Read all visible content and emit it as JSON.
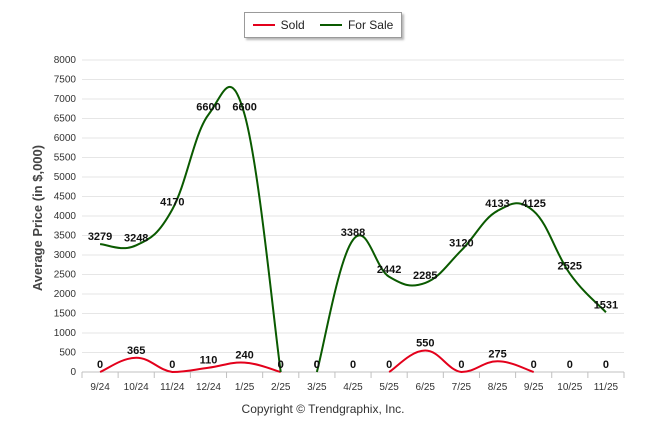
{
  "chart_data": {
    "type": "line",
    "ylabel": "Average Price (in $,000)",
    "ylim": [
      0,
      8000
    ],
    "yticks": [
      0,
      500,
      1000,
      1500,
      2000,
      2500,
      3000,
      3500,
      4000,
      4500,
      5000,
      5500,
      6000,
      6500,
      7000,
      7500,
      8000
    ],
    "categories": [
      "9/24",
      "10/24",
      "11/24",
      "12/24",
      "1/25",
      "2/25",
      "3/25",
      "4/25",
      "5/25",
      "6/25",
      "7/25",
      "8/25",
      "9/25",
      "10/25",
      "11/25"
    ],
    "grid": true,
    "legend_position": "top-center",
    "series": [
      {
        "name": "Sold",
        "color": "#e3001b",
        "values": [
          0,
          365,
          0,
          110,
          240,
          0,
          0,
          0,
          0,
          550,
          0,
          275,
          0,
          0,
          0
        ]
      },
      {
        "name": "For Sale",
        "color": "#0a5a00",
        "values": [
          3279,
          3248,
          4170,
          6600,
          6600,
          0,
          0,
          3388,
          2442,
          2285,
          3120,
          4133,
          4125,
          2525,
          1531
        ]
      }
    ]
  },
  "legend": {
    "sold": "Sold",
    "for_sale": "For Sale"
  },
  "footer": {
    "copyright": "Copyright © Trendgraphix, Inc."
  }
}
